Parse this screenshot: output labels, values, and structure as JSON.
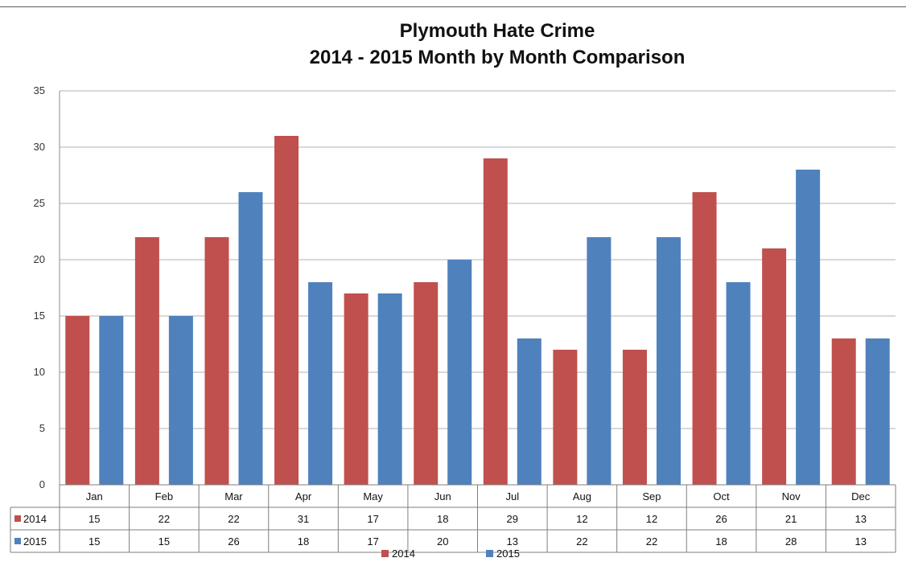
{
  "chart_data": {
    "type": "bar",
    "title": "Plymouth Hate Crime",
    "subtitle": "2014 - 2015 Month by Month Comparison",
    "xlabel": "",
    "ylabel": "",
    "ylim": [
      0,
      35
    ],
    "yticks": [
      0,
      5,
      10,
      15,
      20,
      25,
      30,
      35
    ],
    "grid": true,
    "legend": "bottom",
    "data_table": true,
    "categories": [
      "Jan",
      "Feb",
      "Mar",
      "Apr",
      "May",
      "Jun",
      "Jul",
      "Aug",
      "Sep",
      "Oct",
      "Nov",
      "Dec"
    ],
    "series": [
      {
        "name": "2014",
        "color": "#c0504d",
        "values": [
          15,
          22,
          22,
          31,
          17,
          18,
          29,
          12,
          12,
          26,
          21,
          13
        ]
      },
      {
        "name": "2015",
        "color": "#4f81bd",
        "values": [
          15,
          15,
          26,
          18,
          17,
          20,
          13,
          22,
          22,
          18,
          28,
          13
        ]
      }
    ]
  }
}
